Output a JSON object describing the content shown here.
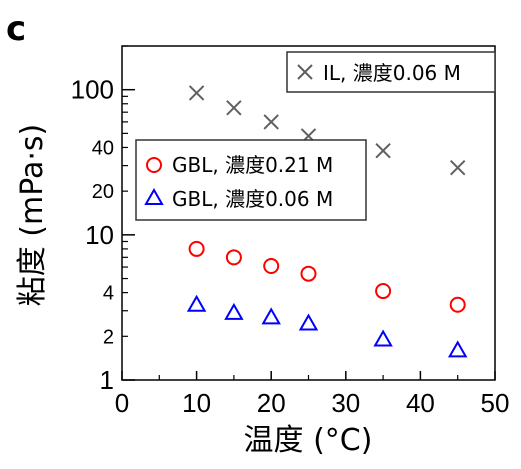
{
  "panel_label": "c",
  "chart_data": {
    "type": "scatter",
    "title": "",
    "xlabel": "温度 (°C)",
    "ylabel": "粘度 (mPa·s)",
    "xscale": "linear",
    "yscale": "log",
    "xlim": [
      0,
      50
    ],
    "ylim": [
      1,
      200
    ],
    "x_ticks": [
      0,
      10,
      20,
      30,
      40,
      50
    ],
    "y_major_ticks": [
      1,
      10,
      100
    ],
    "y_minor_labeled_ticks": [
      2,
      4,
      20,
      40
    ],
    "grid": false,
    "series": [
      {
        "name": "IL, 濃度0.06 M",
        "marker": "x",
        "color": "#606060",
        "legend_position": "top-right",
        "x": [
          10,
          15,
          20,
          25,
          35,
          45
        ],
        "y": [
          95,
          75,
          60,
          48,
          38,
          29
        ]
      },
      {
        "name": "GBL, 濃度0.21 M",
        "marker": "circle",
        "color": "#ff0000",
        "legend_position": "middle-left",
        "x": [
          10,
          15,
          20,
          25,
          35,
          45
        ],
        "y": [
          8.0,
          7.0,
          6.1,
          5.4,
          4.1,
          3.3
        ]
      },
      {
        "name": "GBL, 濃度0.06 M",
        "marker": "triangle",
        "color": "#0000ff",
        "legend_position": "middle-left",
        "x": [
          10,
          15,
          20,
          25,
          35,
          45
        ],
        "y": [
          3.3,
          2.9,
          2.7,
          2.45,
          1.9,
          1.6
        ]
      }
    ]
  }
}
